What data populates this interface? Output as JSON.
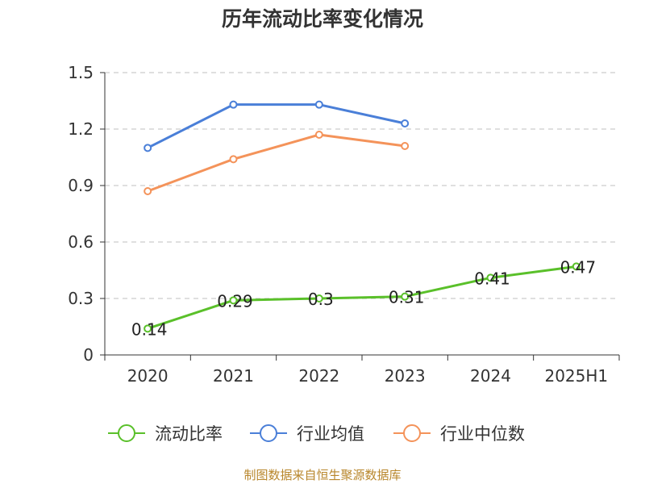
{
  "chart_data": {
    "type": "line",
    "title": "历年流动比率变化情况",
    "categories": [
      "2020",
      "2021",
      "2022",
      "2023",
      "2024",
      "2025H1"
    ],
    "ylim": [
      0,
      1.5
    ],
    "yticks": [
      "0",
      "0.3",
      "0.6",
      "0.9",
      "1.2",
      "1.5"
    ],
    "grid": true,
    "legend_position": "bottom",
    "series": [
      {
        "name": "流动比率",
        "color": "#5ac02a",
        "values": [
          0.14,
          0.29,
          0.3,
          0.31,
          0.41,
          0.47
        ],
        "labels": [
          "0.14",
          "0.29",
          "0.3",
          "0.31",
          "0.41",
          "0.47"
        ],
        "show_labels": true
      },
      {
        "name": "行业均值",
        "color": "#4a7fd8",
        "values": [
          1.1,
          1.33,
          1.33,
          1.23,
          null,
          null
        ],
        "show_labels": false
      },
      {
        "name": "行业中位数",
        "color": "#f4935a",
        "values": [
          0.87,
          1.04,
          1.17,
          1.11,
          null,
          null
        ],
        "show_labels": false
      }
    ]
  },
  "source_text": "制图数据来自恒生聚源数据库"
}
